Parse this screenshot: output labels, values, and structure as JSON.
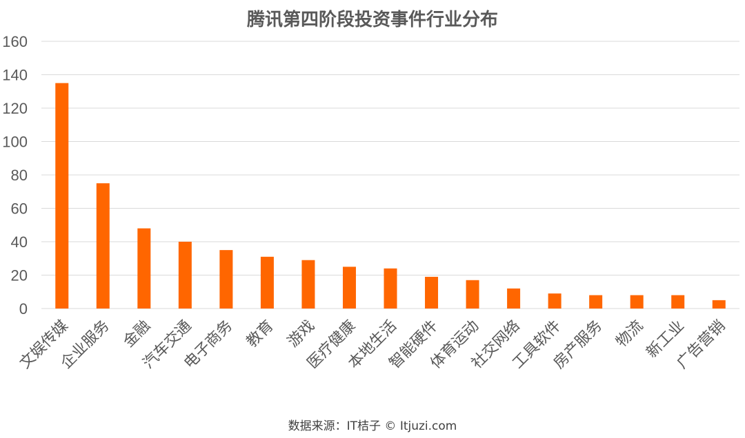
{
  "chart_data": {
    "type": "bar",
    "title": "腾讯第四阶段投资事件行业分布",
    "categories": [
      "文娱传媒",
      "企业服务",
      "金融",
      "汽车交通",
      "电子商务",
      "教育",
      "游戏",
      "医疗健康",
      "本地生活",
      "智能硬件",
      "体育运动",
      "社交网络",
      "工具软件",
      "房产服务",
      "物流",
      "新工业",
      "广告营销"
    ],
    "values": [
      135,
      75,
      48,
      40,
      35,
      31,
      29,
      25,
      24,
      19,
      17,
      12,
      9,
      8,
      8,
      8,
      5
    ],
    "ylim": [
      0,
      160
    ],
    "yticks": [
      0,
      20,
      40,
      60,
      80,
      100,
      120,
      140,
      160
    ],
    "grid": true,
    "bar_color": "#FF6600",
    "grid_color": "#D9D9D9"
  },
  "source": "数据来源：IT桔子 © Itjuzi.com"
}
